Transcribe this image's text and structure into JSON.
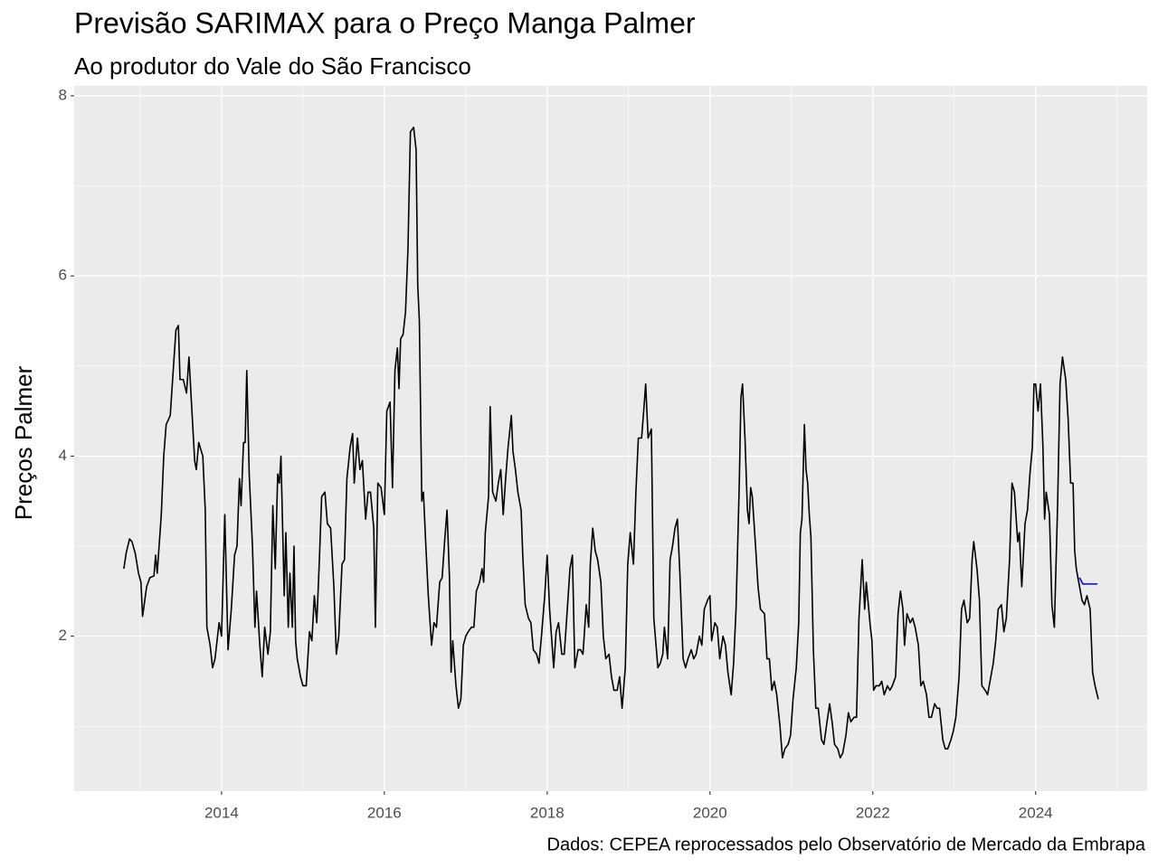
{
  "chart_data": {
    "type": "line",
    "title": "Previsão SARIMAX para o Preço Manga Palmer",
    "subtitle": "Ao produtor do Vale do São Francisco",
    "y_label": "Preços Palmer",
    "caption": "Dados: CEPEA reprocessados pelo Observatório de Mercado da Embrapa",
    "xlim": [
      2012.19,
      2025.37
    ],
    "ylim": [
      0.28,
      8.11
    ],
    "xticks": [
      2014,
      2016,
      2018,
      2020,
      2022,
      2024
    ],
    "yticks": [
      2,
      4,
      6,
      8
    ],
    "xminorticks": [
      2013,
      2015,
      2017,
      2019,
      2021,
      2023,
      2025
    ],
    "yminorticks": [
      1,
      3,
      5,
      7
    ],
    "grid": true,
    "series": [
      {
        "color": "#000000",
        "x": [
          2012.8,
          2012.83,
          2012.87,
          2012.9,
          2012.94,
          2012.98,
          2013.01,
          2013.03,
          2013.08,
          2013.12,
          2013.17,
          2013.19,
          2013.21,
          2013.26,
          2013.29,
          2013.32,
          2013.37,
          2013.41,
          2013.44,
          2013.47,
          2013.49,
          2013.53,
          2013.57,
          2013.6,
          2013.63,
          2013.67,
          2013.69,
          2013.72,
          2013.77,
          2013.8,
          2013.82,
          2013.86,
          2013.89,
          2013.92,
          2013.97,
          2014.0,
          2014.04,
          2014.08,
          2014.12,
          2014.16,
          2014.19,
          2014.22,
          2014.24,
          2014.27,
          2014.29,
          2014.31,
          2014.34,
          2014.38,
          2014.41,
          2014.43,
          2014.47,
          2014.5,
          2014.53,
          2014.57,
          2014.6,
          2014.63,
          2014.66,
          2014.69,
          2014.71,
          2014.73,
          2014.77,
          2014.79,
          2014.82,
          2014.84,
          2014.87,
          2014.89,
          2014.91,
          2014.93,
          2014.97,
          2015.0,
          2015.04,
          2015.08,
          2015.11,
          2015.14,
          2015.17,
          2015.2,
          2015.23,
          2015.27,
          2015.3,
          2015.34,
          2015.38,
          2015.41,
          2015.44,
          2015.48,
          2015.51,
          2015.54,
          2015.58,
          2015.61,
          2015.63,
          2015.67,
          2015.7,
          2015.73,
          2015.77,
          2015.8,
          2015.83,
          2015.87,
          2015.89,
          2015.92,
          2015.96,
          2016.0,
          2016.03,
          2016.07,
          2016.1,
          2016.13,
          2016.16,
          2016.18,
          2016.2,
          2016.23,
          2016.26,
          2016.29,
          2016.32,
          2016.36,
          2016.39,
          2016.41,
          2016.43,
          2016.46,
          2016.48,
          2016.51,
          2016.54,
          2016.58,
          2016.61,
          2016.64,
          2016.68,
          2016.71,
          2016.74,
          2016.77,
          2016.8,
          2016.82,
          2016.84,
          2016.88,
          2016.91,
          2016.94,
          2016.97,
          2017.0,
          2017.03,
          2017.07,
          2017.1,
          2017.13,
          2017.17,
          2017.2,
          2017.22,
          2017.24,
          2017.28,
          2017.3,
          2017.33,
          2017.37,
          2017.4,
          2017.43,
          2017.46,
          2017.49,
          2017.52,
          2017.56,
          2017.58,
          2017.61,
          2017.64,
          2017.68,
          2017.7,
          2017.73,
          2017.77,
          2017.8,
          2017.83,
          2017.87,
          2017.9,
          2017.93,
          2017.97,
          2018.0,
          2018.03,
          2018.08,
          2018.11,
          2018.14,
          2018.18,
          2018.21,
          2018.24,
          2018.28,
          2018.31,
          2018.34,
          2018.38,
          2018.41,
          2018.44,
          2018.48,
          2018.51,
          2018.53,
          2018.56,
          2018.59,
          2018.62,
          2018.66,
          2018.69,
          2018.72,
          2018.76,
          2018.79,
          2018.82,
          2018.86,
          2018.89,
          2018.92,
          2018.96,
          2018.99,
          2019.02,
          2019.06,
          2019.09,
          2019.12,
          2019.16,
          2019.19,
          2019.21,
          2019.24,
          2019.28,
          2019.31,
          2019.36,
          2019.39,
          2019.42,
          2019.44,
          2019.48,
          2019.51,
          2019.54,
          2019.57,
          2019.6,
          2019.63,
          2019.67,
          2019.7,
          2019.73,
          2019.77,
          2019.8,
          2019.83,
          2019.87,
          2019.9,
          2019.93,
          2019.97,
          2020.0,
          2020.02,
          2020.06,
          2020.09,
          2020.12,
          2020.16,
          2020.19,
          2020.22,
          2020.26,
          2020.29,
          2020.32,
          2020.36,
          2020.38,
          2020.4,
          2020.43,
          2020.46,
          2020.48,
          2020.5,
          2020.52,
          2020.56,
          2020.59,
          2020.62,
          2020.67,
          2020.7,
          2020.73,
          2020.76,
          2020.79,
          2020.82,
          2020.86,
          2020.89,
          2020.92,
          2020.96,
          2020.99,
          2021.02,
          2021.06,
          2021.09,
          2021.11,
          2021.13,
          2021.16,
          2021.18,
          2021.2,
          2021.22,
          2021.24,
          2021.27,
          2021.3,
          2021.33,
          2021.37,
          2021.4,
          2021.43,
          2021.47,
          2021.5,
          2021.53,
          2021.57,
          2021.6,
          2021.63,
          2021.67,
          2021.7,
          2021.73,
          2021.77,
          2021.8,
          2021.83,
          2021.87,
          2021.9,
          2021.92,
          2021.94,
          2021.97,
          2021.99,
          2022.01,
          2022.04,
          2022.08,
          2022.11,
          2022.14,
          2022.18,
          2022.21,
          2022.24,
          2022.28,
          2022.31,
          2022.34,
          2022.37,
          2022.39,
          2022.42,
          2022.46,
          2022.49,
          2022.52,
          2022.56,
          2022.59,
          2022.62,
          2022.66,
          2022.69,
          2022.72,
          2022.76,
          2022.79,
          2022.82,
          2022.86,
          2022.89,
          2022.92,
          2022.96,
          2022.99,
          2023.02,
          2023.06,
          2023.09,
          2023.12,
          2023.16,
          2023.19,
          2023.22,
          2023.24,
          2023.28,
          2023.31,
          2023.34,
          2023.38,
          2023.41,
          2023.44,
          2023.48,
          2023.51,
          2023.54,
          2023.58,
          2023.61,
          2023.64,
          2023.68,
          2023.71,
          2023.74,
          2023.78,
          2023.8,
          2023.83,
          2023.87,
          2023.9,
          2023.93,
          2023.96,
          2023.98,
          2024.0,
          2024.03,
          2024.06,
          2024.09,
          2024.11,
          2024.13,
          2024.17,
          2024.2,
          2024.23,
          2024.27,
          2024.3,
          2024.33,
          2024.37,
          2024.4,
          2024.43,
          2024.46,
          2024.48,
          2024.5,
          2024.53,
          2024.57,
          2024.6,
          2024.63,
          2024.67,
          2024.7,
          2024.73,
          2024.77
        ],
        "values": [
          2.75,
          2.93,
          3.08,
          3.05,
          2.92,
          2.7,
          2.6,
          2.22,
          2.55,
          2.65,
          2.67,
          2.9,
          2.7,
          3.35,
          4.0,
          4.35,
          4.45,
          5.0,
          5.4,
          5.45,
          4.85,
          4.85,
          4.7,
          5.1,
          4.6,
          3.95,
          3.85,
          4.15,
          4.0,
          3.4,
          2.1,
          1.9,
          1.65,
          1.75,
          2.15,
          2.0,
          3.35,
          1.85,
          2.3,
          2.9,
          3.0,
          3.75,
          3.45,
          4.15,
          4.15,
          4.95,
          3.8,
          3.0,
          2.1,
          2.5,
          1.9,
          1.55,
          2.1,
          1.8,
          2.05,
          3.45,
          2.75,
          3.8,
          3.7,
          4.0,
          2.45,
          3.15,
          2.1,
          2.7,
          2.1,
          3.0,
          1.95,
          1.75,
          1.55,
          1.45,
          1.45,
          2.05,
          1.95,
          2.45,
          2.15,
          2.8,
          3.55,
          3.6,
          3.25,
          3.2,
          2.55,
          1.8,
          2.0,
          2.8,
          2.85,
          3.75,
          4.1,
          4.25,
          3.7,
          4.2,
          3.85,
          3.95,
          3.3,
          3.6,
          3.6,
          3.2,
          2.1,
          3.7,
          3.65,
          3.35,
          4.5,
          4.6,
          3.65,
          4.95,
          5.2,
          4.75,
          5.3,
          5.35,
          5.6,
          6.3,
          7.6,
          7.65,
          7.4,
          5.9,
          5.5,
          3.5,
          3.6,
          3.0,
          2.45,
          1.9,
          2.15,
          2.1,
          2.6,
          2.65,
          3.05,
          3.4,
          2.65,
          1.6,
          1.95,
          1.45,
          1.2,
          1.3,
          1.9,
          2.0,
          2.05,
          2.1,
          2.1,
          2.5,
          2.6,
          2.75,
          2.6,
          3.15,
          3.55,
          4.55,
          3.6,
          3.5,
          3.7,
          3.85,
          3.35,
          3.75,
          4.1,
          4.45,
          4.05,
          3.85,
          3.6,
          3.4,
          2.9,
          2.35,
          2.2,
          2.15,
          1.85,
          1.8,
          1.7,
          2.0,
          2.45,
          2.9,
          2.3,
          1.65,
          2.05,
          2.15,
          1.8,
          1.8,
          2.2,
          2.75,
          2.9,
          1.65,
          1.85,
          1.85,
          1.8,
          2.35,
          2.1,
          2.8,
          3.2,
          2.95,
          2.85,
          2.6,
          2.0,
          1.75,
          1.8,
          1.55,
          1.4,
          1.4,
          1.55,
          1.2,
          1.65,
          2.8,
          3.15,
          2.8,
          3.6,
          4.2,
          4.2,
          4.55,
          4.8,
          4.2,
          4.3,
          2.2,
          1.65,
          1.7,
          1.8,
          2.1,
          1.75,
          2.85,
          3.0,
          3.2,
          3.3,
          2.7,
          1.75,
          1.65,
          1.75,
          1.85,
          1.75,
          1.8,
          2.0,
          1.9,
          2.3,
          2.4,
          2.45,
          1.95,
          2.15,
          2.1,
          1.75,
          2.0,
          1.9,
          1.6,
          1.35,
          1.7,
          2.3,
          3.7,
          4.65,
          4.8,
          4.2,
          3.4,
          3.25,
          3.65,
          3.55,
          3.0,
          2.55,
          2.3,
          2.25,
          1.75,
          1.75,
          1.4,
          1.5,
          1.35,
          1.0,
          0.65,
          0.75,
          0.8,
          0.9,
          1.3,
          1.65,
          2.15,
          3.15,
          3.3,
          4.35,
          3.85,
          3.7,
          3.35,
          3.1,
          1.85,
          1.2,
          1.2,
          0.85,
          0.8,
          1.0,
          1.25,
          1.05,
          0.8,
          0.75,
          0.65,
          0.7,
          0.9,
          1.15,
          1.05,
          1.1,
          1.1,
          2.2,
          2.85,
          2.3,
          2.6,
          2.4,
          2.1,
          1.95,
          1.4,
          1.45,
          1.45,
          1.5,
          1.35,
          1.45,
          1.4,
          1.45,
          1.55,
          2.25,
          2.5,
          2.3,
          1.9,
          2.25,
          2.15,
          2.2,
          2.1,
          1.9,
          1.45,
          1.5,
          1.35,
          1.1,
          1.1,
          1.25,
          1.2,
          1.2,
          0.85,
          0.75,
          0.75,
          0.85,
          0.95,
          1.1,
          1.55,
          2.3,
          2.4,
          2.15,
          2.2,
          2.85,
          3.05,
          2.75,
          2.4,
          1.45,
          1.4,
          1.35,
          1.5,
          1.7,
          1.95,
          2.3,
          2.35,
          2.05,
          2.2,
          2.85,
          3.7,
          3.6,
          3.05,
          3.15,
          2.55,
          3.25,
          3.4,
          3.8,
          4.1,
          4.8,
          4.8,
          4.5,
          4.8,
          4.1,
          3.3,
          3.6,
          3.35,
          2.35,
          2.1,
          3.45,
          4.8,
          5.1,
          4.85,
          4.4,
          3.7,
          3.7,
          2.95,
          2.75,
          2.6,
          2.4,
          2.35,
          2.45,
          2.3,
          1.6,
          1.45,
          1.3
        ]
      },
      {
        "color": "#0000ff",
        "x": [
          2024.54,
          2024.58,
          2024.76
        ],
        "values": [
          2.65,
          2.58,
          2.58
        ]
      }
    ]
  }
}
